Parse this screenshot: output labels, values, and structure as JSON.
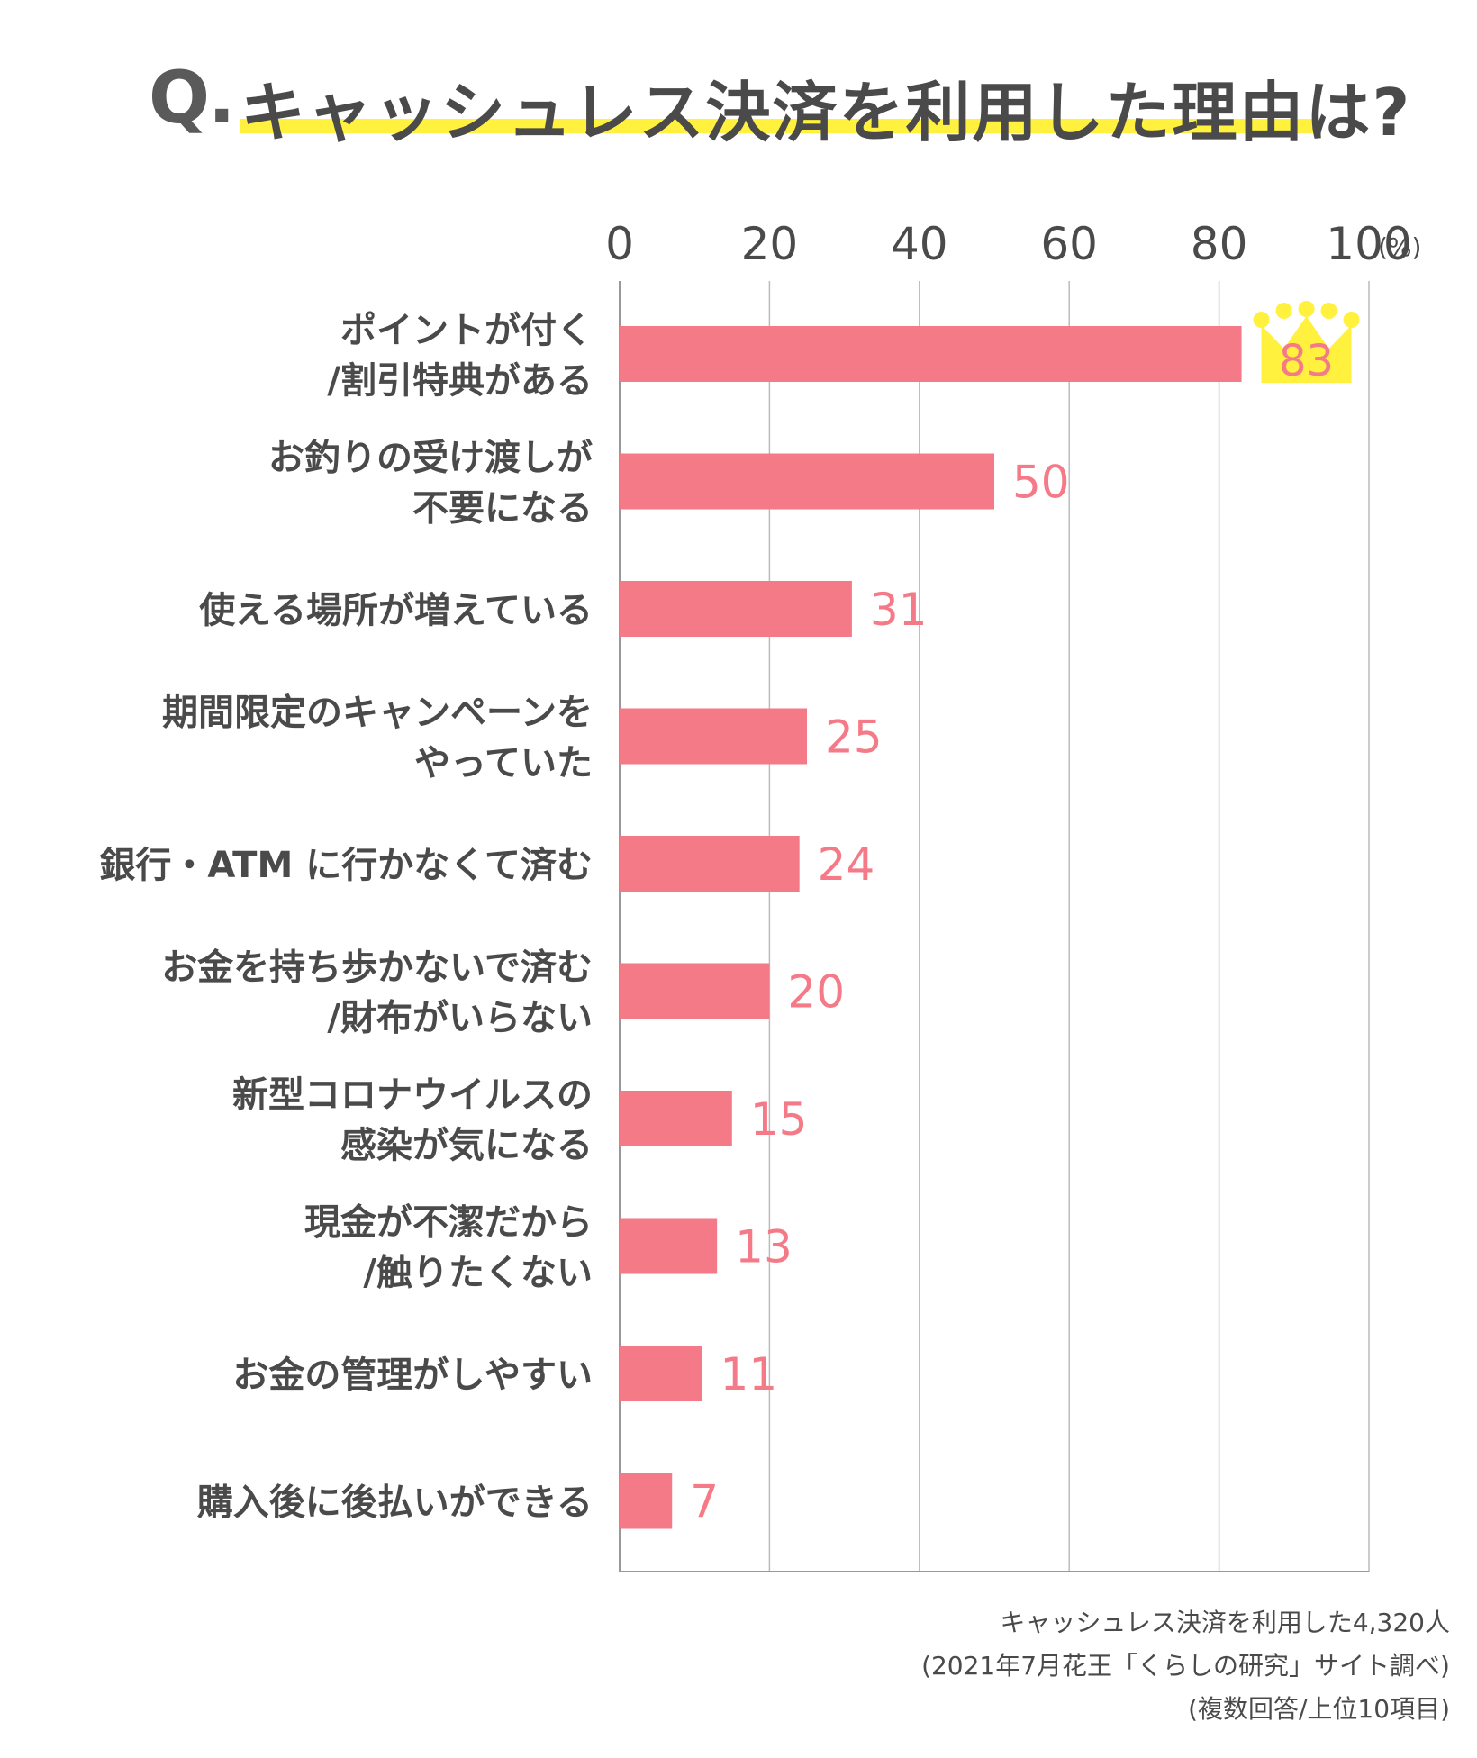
{
  "title": {
    "prefix": "Q.",
    "text": "キャッシュレス決済を利用した理由は?"
  },
  "colors": {
    "bar": "#f57a88",
    "value_label": "#f57a88",
    "highlight": "#fff13d",
    "crown": "#fff13d",
    "grid": "#bbbbbb"
  },
  "chart_data": {
    "type": "bar",
    "orientation": "horizontal",
    "xlim": [
      0,
      100
    ],
    "x_ticks": [
      "0",
      "20",
      "40",
      "60",
      "80",
      "100"
    ],
    "x_unit": "(%)",
    "categories": [
      [
        "ポイントが付く",
        "/割引特典がある"
      ],
      [
        "お釣りの受け渡しが",
        "不要になる"
      ],
      [
        "使える場所が増えている"
      ],
      [
        "期間限定のキャンペーンを",
        "やっていた"
      ],
      [
        "銀行・ATM に行かなくて済む"
      ],
      [
        "お金を持ち歩かないで済む",
        "/財布がいらない"
      ],
      [
        "新型コロナウイルスの",
        "感染が気になる"
      ],
      [
        "現金が不潔だから",
        "/触りたくない"
      ],
      [
        "お金の管理がしやすい"
      ],
      [
        "購入後に後払いができる"
      ]
    ],
    "values": [
      83,
      50,
      31,
      25,
      24,
      20,
      15,
      13,
      11,
      7
    ],
    "value_labels": [
      "83",
      "50",
      "31",
      "25",
      "24",
      "20",
      "15",
      "13",
      "11",
      "7"
    ],
    "top_marker": "crown-icon",
    "grid": true
  },
  "notes": [
    "キャッシュレス決済を利用した4,320人",
    "(2021年7月花王「くらしの研究」サイト調べ)",
    "(複数回答/上位10項目)"
  ]
}
